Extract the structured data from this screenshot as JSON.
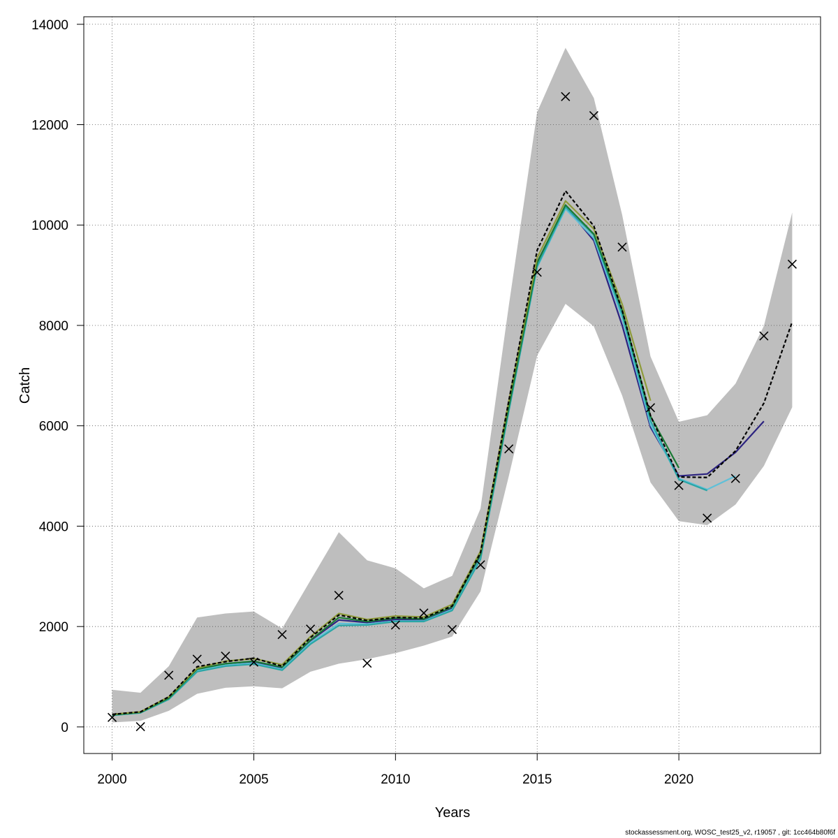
{
  "chart_data": {
    "type": "line",
    "title": "",
    "xlabel": "Years",
    "ylabel": "Catch",
    "xlim": [
      1999,
      2025
    ],
    "ylim": [
      -530,
      14150
    ],
    "x_ticks": [
      2000,
      2005,
      2010,
      2015,
      2020
    ],
    "y_ticks": [
      0,
      2000,
      4000,
      6000,
      8000,
      10000,
      12000,
      14000
    ],
    "grid": true,
    "legend": "none",
    "band": {
      "color": "#bebebe",
      "x": [
        2000,
        2001,
        2002,
        2003,
        2004,
        2005,
        2006,
        2007,
        2008,
        2009,
        2010,
        2011,
        2012,
        2013,
        2014,
        2015,
        2016,
        2017,
        2018,
        2019,
        2020,
        2021,
        2022,
        2023,
        2024
      ],
      "lower": [
        90,
        120,
        320,
        660,
        780,
        810,
        770,
        1100,
        1260,
        1350,
        1470,
        1620,
        1800,
        2700,
        5000,
        7400,
        8430,
        7980,
        6600,
        4870,
        4100,
        4020,
        4430,
        5200,
        6370
      ],
      "upper": [
        740,
        680,
        1210,
        2180,
        2260,
        2300,
        1960,
        2920,
        3880,
        3320,
        3160,
        2760,
        3010,
        4350,
        8400,
        12250,
        13530,
        12530,
        10200,
        7380,
        6080,
        6210,
        6840,
        7990,
        10250
      ]
    },
    "series": [
      {
        "color": "#2c2380",
        "x": [
          2000,
          2001,
          2002,
          2003,
          2004,
          2005,
          2006,
          2007,
          2008,
          2009,
          2010,
          2011,
          2012,
          2013,
          2014,
          2015,
          2016,
          2017,
          2018,
          2019,
          2020,
          2021,
          2022,
          2023
        ],
        "values": [
          240,
          290,
          570,
          1150,
          1260,
          1300,
          1170,
          1720,
          2130,
          2080,
          2140,
          2130,
          2370,
          3420,
          6400,
          9260,
          10370,
          9690,
          8000,
          5970,
          5000,
          5040,
          5470,
          6090
        ]
      },
      {
        "color": "#5fc0d8",
        "x": [
          2000,
          2001,
          2002,
          2003,
          2004,
          2005,
          2006,
          2007,
          2008,
          2009,
          2010,
          2011,
          2012,
          2013,
          2014,
          2015,
          2016,
          2017,
          2018,
          2019,
          2020,
          2021,
          2022
        ],
        "values": [
          235,
          285,
          560,
          1120,
          1230,
          1270,
          1150,
          1680,
          2060,
          2050,
          2110,
          2110,
          2340,
          3360,
          6300,
          9160,
          10320,
          9740,
          8150,
          6020,
          4950,
          4730,
          5000
        ]
      },
      {
        "color": "#2aa6a6",
        "x": [
          2000,
          2001,
          2002,
          2003,
          2004,
          2005,
          2006,
          2007,
          2008,
          2009,
          2010,
          2011,
          2012,
          2013,
          2014,
          2015,
          2016,
          2017,
          2018,
          2019,
          2020,
          2021
        ],
        "values": [
          230,
          280,
          550,
          1100,
          1210,
          1250,
          1130,
          1650,
          2020,
          2030,
          2100,
          2100,
          2320,
          3340,
          6300,
          9180,
          10360,
          9800,
          8220,
          6100,
          4930,
          4710
        ]
      },
      {
        "color": "#1a7a35",
        "x": [
          2000,
          2001,
          2002,
          2003,
          2004,
          2005,
          2006,
          2007,
          2008,
          2009,
          2010,
          2011,
          2012,
          2013,
          2014,
          2015,
          2016,
          2017,
          2018,
          2019,
          2020
        ],
        "values": [
          240,
          290,
          575,
          1150,
          1260,
          1310,
          1190,
          1730,
          2180,
          2100,
          2170,
          2150,
          2390,
          3440,
          6380,
          9250,
          10400,
          9820,
          8300,
          6190,
          5160
        ]
      },
      {
        "color": "#8e9b3a",
        "x": [
          2000,
          2001,
          2002,
          2003,
          2004,
          2005,
          2006,
          2007,
          2008,
          2009,
          2010,
          2011,
          2012,
          2013,
          2014,
          2015,
          2016,
          2017,
          2018,
          2019
        ],
        "values": [
          250,
          300,
          600,
          1170,
          1310,
          1360,
          1240,
          1800,
          2260,
          2140,
          2210,
          2190,
          2440,
          3500,
          6500,
          9350,
          10480,
          9920,
          8420,
          6500
        ]
      },
      {
        "color": "#000000",
        "dashed": true,
        "x": [
          2000,
          2001,
          2002,
          2003,
          2004,
          2005,
          2006,
          2007,
          2008,
          2009,
          2010,
          2011,
          2012,
          2013,
          2014,
          2015,
          2016,
          2017,
          2018,
          2019,
          2020,
          2021,
          2022,
          2023,
          2024
        ],
        "values": [
          250,
          300,
          600,
          1200,
          1300,
          1370,
          1210,
          1780,
          2230,
          2120,
          2180,
          2170,
          2410,
          3470,
          6500,
          9500,
          10680,
          9980,
          8300,
          6200,
          4980,
          4970,
          5500,
          6450,
          8070
        ]
      }
    ],
    "observed": {
      "marker": "x",
      "x": [
        2000,
        2001,
        2002,
        2003,
        2004,
        2005,
        2006,
        2007,
        2008,
        2009,
        2010,
        2011,
        2012,
        2013,
        2014,
        2015,
        2016,
        2017,
        2018,
        2019,
        2020,
        2021,
        2022,
        2023,
        2024
      ],
      "y": [
        190,
        5,
        1030,
        1350,
        1410,
        1290,
        1840,
        1950,
        2620,
        1270,
        2030,
        2270,
        1940,
        3230,
        5540,
        9060,
        12560,
        12180,
        9560,
        6360,
        4810,
        4160,
        4950,
        7790,
        9220
      ]
    }
  },
  "footer": "stockassessment.org, WOSC_test25_v2, r19057 , git: 1cc464b80f6f"
}
